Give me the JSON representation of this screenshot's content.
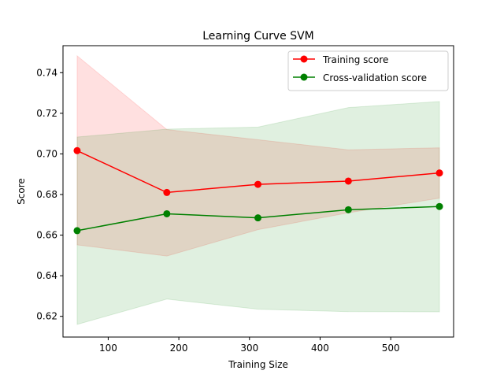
{
  "chart_data": {
    "type": "line",
    "title": "Learning Curve SVM",
    "xlabel": "Training Size",
    "ylabel": "Score",
    "xlim": [
      36,
      589
    ],
    "ylim": [
      0.6098,
      0.7533
    ],
    "xticks": [
      100,
      200,
      300,
      400,
      500
    ],
    "yticks": [
      0.62,
      0.64,
      0.66,
      0.68,
      0.7,
      0.72,
      0.74
    ],
    "ytick_labels": [
      "0.62",
      "0.64",
      "0.66",
      "0.68",
      "0.70",
      "0.72",
      "0.74"
    ],
    "x": [
      56,
      183,
      312,
      440,
      569
    ],
    "series": [
      {
        "name": "Training score",
        "color": "#ff0000",
        "band_color": "#ff0000",
        "values": [
          0.7016,
          0.681,
          0.685,
          0.6866,
          0.6906
        ],
        "upper": [
          0.7483,
          0.712,
          0.707,
          0.702,
          0.703
        ],
        "lower": [
          0.6552,
          0.6497,
          0.6627,
          0.671,
          0.6782
        ]
      },
      {
        "name": "Cross-validation score",
        "color": "#008000",
        "band_color": "#008000",
        "values": [
          0.6622,
          0.6705,
          0.6685,
          0.6725,
          0.6741
        ],
        "upper": [
          0.7083,
          0.7122,
          0.7132,
          0.7228,
          0.7258
        ],
        "lower": [
          0.616,
          0.6285,
          0.6235,
          0.6223,
          0.6222
        ]
      }
    ],
    "grid": false,
    "legend_position": "top-right"
  }
}
